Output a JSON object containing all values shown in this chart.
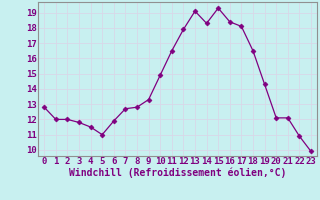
{
  "x": [
    0,
    1,
    2,
    3,
    4,
    5,
    6,
    7,
    8,
    9,
    10,
    11,
    12,
    13,
    14,
    15,
    16,
    17,
    18,
    19,
    20,
    21,
    22,
    23
  ],
  "y": [
    12.8,
    12.0,
    12.0,
    11.8,
    11.5,
    11.0,
    11.9,
    12.7,
    12.8,
    13.3,
    14.9,
    16.5,
    17.9,
    19.1,
    18.3,
    19.3,
    18.4,
    18.1,
    16.5,
    14.3,
    12.1,
    12.1,
    10.9,
    9.9
  ],
  "line_color": "#800080",
  "marker": "D",
  "marker_size": 2.5,
  "bg_color": "#c8f0f0",
  "grid_color": "#d8d8e8",
  "xlabel": "Windchill (Refroidissement éolien,°C)",
  "ytick_labels": [
    "10",
    "11",
    "12",
    "13",
    "14",
    "15",
    "16",
    "17",
    "18",
    "19"
  ],
  "ytick_vals": [
    10,
    11,
    12,
    13,
    14,
    15,
    16,
    17,
    18,
    19
  ],
  "xtick_labels": [
    "0",
    "1",
    "2",
    "3",
    "4",
    "5",
    "6",
    "7",
    "8",
    "9",
    "10",
    "11",
    "12",
    "13",
    "14",
    "15",
    "16",
    "17",
    "18",
    "19",
    "20",
    "21",
    "22",
    "23"
  ],
  "ylim": [
    9.6,
    19.7
  ],
  "xlim": [
    -0.5,
    23.5
  ],
  "xlabel_fontsize": 7,
  "tick_fontsize": 6.5,
  "spine_color": "#909090"
}
